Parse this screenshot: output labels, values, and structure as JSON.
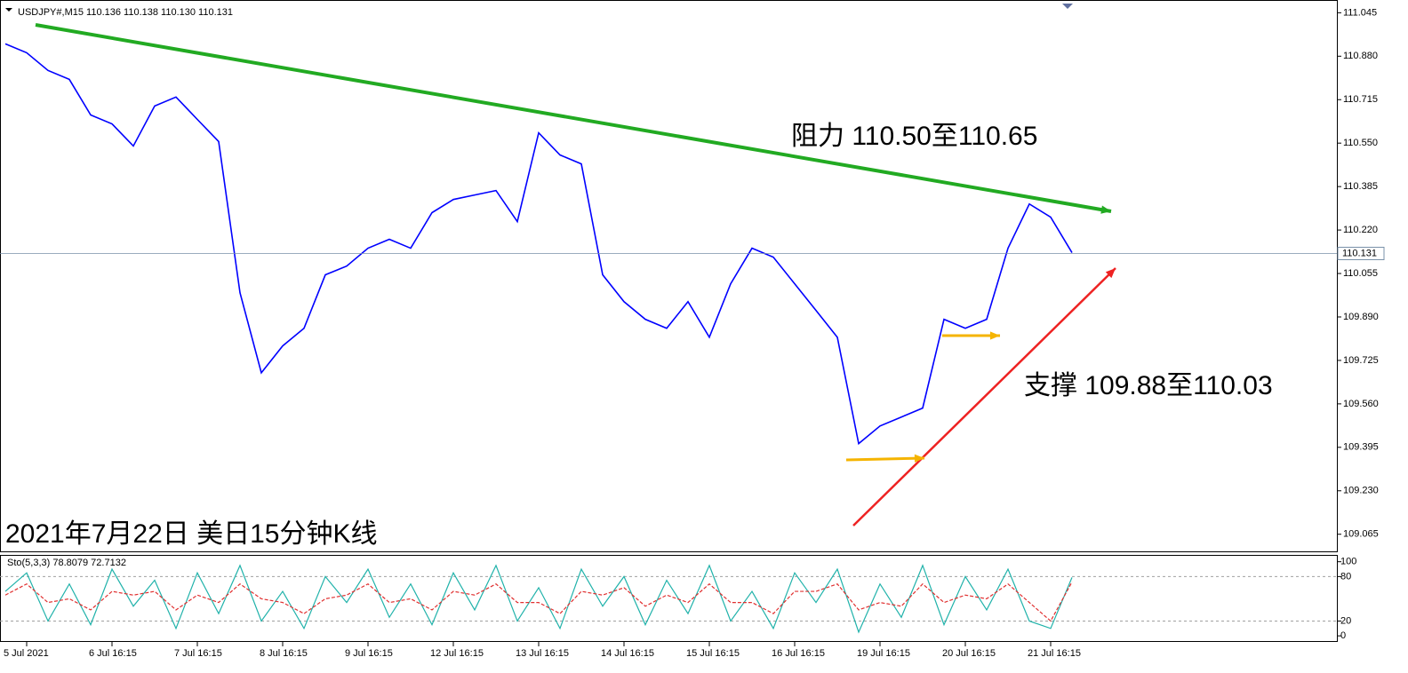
{
  "chart_data": [
    {
      "type": "line",
      "title": "USDJPY#,M15 110.136 110.138 110.130 110.131",
      "annotations": [
        "阻力 110.50至110.65",
        "支撑 109.88至110.03",
        "2021年7月22日 美日15分钟K线"
      ],
      "color": "#0000ff",
      "values": [
        110.927,
        110.893,
        110.826,
        110.792,
        110.657,
        110.623,
        110.539,
        110.691,
        110.725,
        110.64,
        110.556,
        109.982,
        109.678,
        109.78,
        109.847,
        110.05,
        110.083,
        110.151,
        110.185,
        110.151,
        110.286,
        110.336,
        110.353,
        110.37,
        110.252,
        110.589,
        110.505,
        110.471,
        110.05,
        109.948,
        109.881,
        109.847,
        109.948,
        109.813,
        110.016,
        110.151,
        110.117,
        110.016,
        109.915,
        109.813,
        109.409,
        109.476,
        109.51,
        109.544,
        109.881,
        109.847,
        109.881,
        110.151,
        110.319,
        110.269,
        110.134
      ],
      "ylim": [
        109.0,
        111.09
      ],
      "yticks": [
        111.045,
        {
          "value": 110.88,
          "label": "110.880"
        },
        110.715,
        {
          "value": 110.55,
          "label": "110.550"
        },
        110.385,
        {
          "value": 110.22,
          "label": "110.220"
        },
        110.055,
        {
          "value": 109.89,
          "label": "109.890"
        },
        109.725,
        {
          "value": 109.56,
          "label": "109.560"
        },
        109.395,
        {
          "value": 109.23,
          "label": "109.230"
        },
        109.065
      ],
      "current_price": 110.131
    },
    {
      "type": "line",
      "title": "Sto(5,3,3) 78.8079 72.7132",
      "categories": [
        null,
        "5 Jul 2021",
        null,
        null,
        null,
        "6 Jul 16:15",
        null,
        null,
        null,
        "7 Jul 16:15",
        null,
        null,
        null,
        "8 Jul 16:15",
        null,
        null,
        null,
        "9 Jul 16:15",
        null,
        null,
        null,
        "12 Jul 16:15",
        null,
        null,
        null,
        "13 Jul 16:15",
        null,
        null,
        null,
        "14 Jul 16:15",
        null,
        null,
        null,
        "15 Jul 16:15",
        null,
        null,
        null,
        "16 Jul 16:15",
        null,
        null,
        null,
        "19 Jul 16:15",
        null,
        null,
        null,
        "20 Jul 16:15",
        null,
        null,
        null,
        "21 Jul 16:15",
        null
      ],
      "series": [
        {
          "color": "#20b2aa",
          "values": [
            60,
            85,
            20,
            70,
            15,
            90,
            40,
            75,
            10,
            85,
            30,
            95,
            20,
            60,
            10,
            80,
            45,
            90,
            25,
            70,
            15,
            85,
            35,
            95,
            20,
            65,
            10,
            90,
            40,
            80,
            15,
            75,
            30,
            95,
            20,
            60,
            10,
            85,
            45,
            90,
            5,
            70,
            25,
            95,
            15,
            80,
            35,
            90,
            20,
            10,
            78.8079
          ]
        },
        {
          "color": "#e03030",
          "values": [
            55,
            70,
            45,
            50,
            35,
            60,
            55,
            60,
            35,
            55,
            45,
            70,
            50,
            45,
            30,
            50,
            55,
            70,
            45,
            50,
            35,
            60,
            55,
            70,
            45,
            45,
            30,
            60,
            55,
            65,
            40,
            55,
            45,
            70,
            45,
            45,
            30,
            60,
            60,
            70,
            35,
            45,
            40,
            70,
            45,
            55,
            50,
            70,
            45,
            20,
            72.7132
          ]
        }
      ],
      "ylim": [
        -7,
        108
      ],
      "yticks": [
        100,
        80,
        20,
        0
      ],
      "levels": [
        20,
        80
      ]
    }
  ]
}
